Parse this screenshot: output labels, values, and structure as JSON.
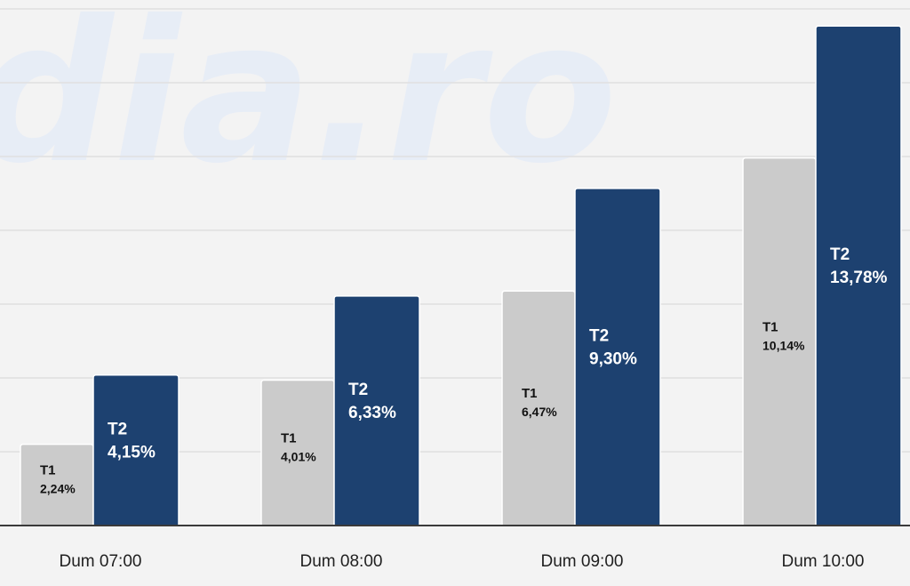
{
  "watermark_text": "dia.ro",
  "chart_data": {
    "type": "bar",
    "title": "",
    "xlabel": "",
    "ylabel": "",
    "ylim": [
      0,
      14.3
    ],
    "grid": true,
    "legend": "none",
    "categories": [
      "Dum 07:00",
      "Dum 08:00",
      "Dum 09:00",
      "Dum 10:00"
    ],
    "series": [
      {
        "name": "T1",
        "color": "#cbcbcb",
        "values": [
          2.24,
          4.01,
          6.47,
          10.14
        ],
        "labels": [
          "2,24%",
          "4,01%",
          "6,47%",
          "10,14%"
        ]
      },
      {
        "name": "T2",
        "color": "#1d4170",
        "values": [
          4.15,
          6.33,
          9.3,
          13.78
        ],
        "labels": [
          "4,15%",
          "6,33%",
          "9,30%",
          "13,78%"
        ]
      }
    ]
  }
}
